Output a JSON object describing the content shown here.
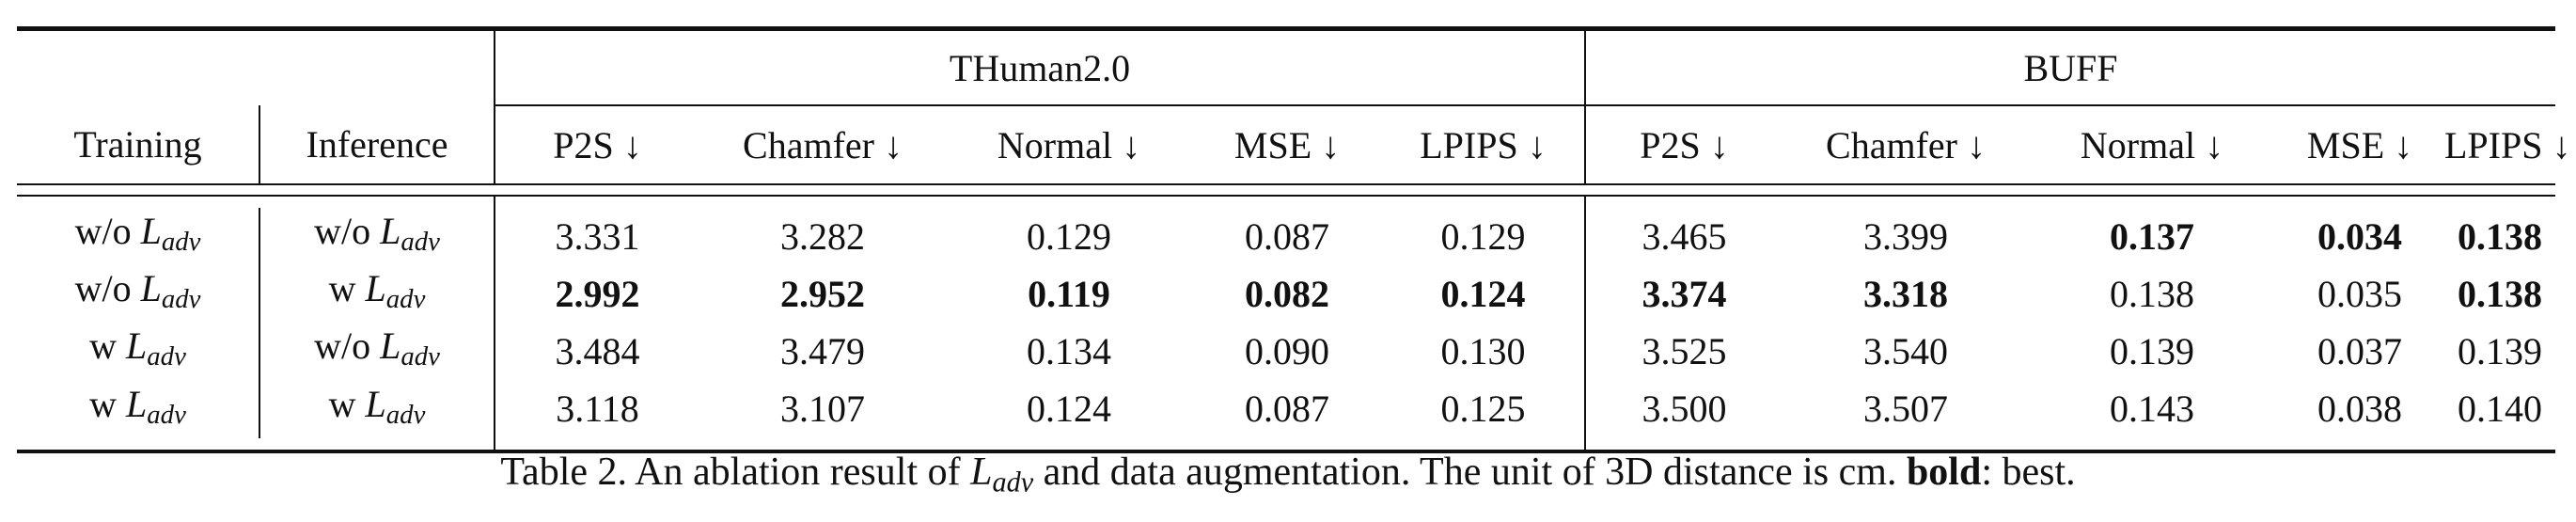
{
  "table": {
    "groups": [
      {
        "label": "THuman2.0"
      },
      {
        "label": "BUFF"
      }
    ],
    "headers": {
      "training": "Training",
      "inference": "Inference",
      "metrics": [
        "P2S ↓",
        "Chamfer ↓",
        "Normal ↓",
        "MSE ↓",
        "LPIPS ↓",
        "P2S ↓",
        "Chamfer ↓",
        "Normal ↓",
        "MSE ↓",
        "LPIPS ↓"
      ]
    },
    "loss_symbol": "L",
    "loss_subscript": "adv",
    "rows": [
      {
        "training_prefix": "w/o",
        "inference_prefix": "w/o",
        "values": [
          "3.331",
          "3.282",
          "0.129",
          "0.087",
          "0.129",
          "3.465",
          "3.399",
          "0.137",
          "0.034",
          "0.138"
        ],
        "bold": [
          false,
          false,
          false,
          false,
          false,
          false,
          false,
          true,
          true,
          true
        ]
      },
      {
        "training_prefix": "w/o",
        "inference_prefix": "w",
        "values": [
          "2.992",
          "2.952",
          "0.119",
          "0.082",
          "0.124",
          "3.374",
          "3.318",
          "0.138",
          "0.035",
          "0.138"
        ],
        "bold": [
          true,
          true,
          true,
          true,
          true,
          true,
          true,
          false,
          false,
          true
        ]
      },
      {
        "training_prefix": "w",
        "inference_prefix": "w/o",
        "values": [
          "3.484",
          "3.479",
          "0.134",
          "0.090",
          "0.130",
          "3.525",
          "3.540",
          "0.139",
          "0.037",
          "0.139"
        ],
        "bold": [
          false,
          false,
          false,
          false,
          false,
          false,
          false,
          false,
          false,
          false
        ]
      },
      {
        "training_prefix": "w",
        "inference_prefix": "w",
        "values": [
          "3.118",
          "3.107",
          "0.124",
          "0.087",
          "0.125",
          "3.500",
          "3.507",
          "0.143",
          "0.038",
          "0.140"
        ],
        "bold": [
          false,
          false,
          false,
          false,
          false,
          false,
          false,
          false,
          false,
          false
        ]
      }
    ]
  },
  "caption": {
    "lead": "Table 2. An ablation result of ",
    "symbol": "L",
    "subscript": "adv",
    "mid": " and data augmentation. The unit of 3D distance is cm. ",
    "bold_word": "bold",
    "tail": ": best."
  }
}
